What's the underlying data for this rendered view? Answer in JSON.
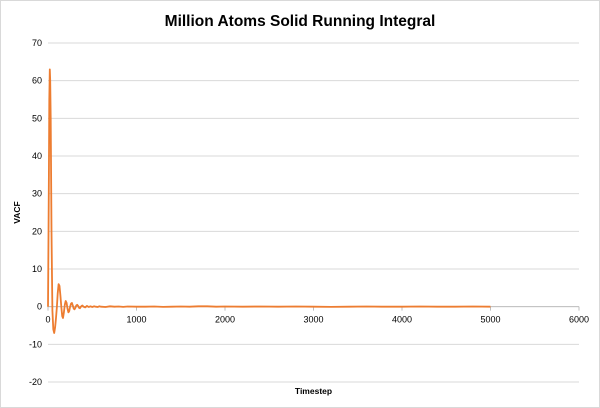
{
  "chart_data": {
    "type": "line",
    "title": "Million Atoms Solid Running Integral",
    "xlabel": "Timestep",
    "ylabel": "VACF",
    "xlim": [
      0,
      6000
    ],
    "ylim": [
      -20,
      70
    ],
    "xticks": [
      0,
      1000,
      2000,
      3000,
      4000,
      5000,
      6000
    ],
    "yticks": [
      70,
      60,
      50,
      40,
      30,
      20,
      10,
      0,
      -10,
      -20
    ],
    "grid": "horizontal",
    "legend": "none",
    "series": [
      {
        "name": "Running Integral",
        "color": "#ed7d31",
        "x": [
          0,
          5,
          10,
          15,
          20,
          25,
          30,
          35,
          40,
          45,
          50,
          60,
          70,
          80,
          90,
          100,
          110,
          120,
          130,
          140,
          150,
          160,
          170,
          180,
          190,
          200,
          210,
          220,
          230,
          240,
          250,
          260,
          270,
          280,
          290,
          300,
          310,
          320,
          330,
          340,
          350,
          360,
          370,
          380,
          390,
          400,
          420,
          440,
          460,
          480,
          500,
          520,
          540,
          560,
          580,
          600,
          650,
          700,
          750,
          800,
          850,
          900,
          1000,
          1100,
          1200,
          1300,
          1400,
          1500,
          1600,
          1700,
          1800,
          1900,
          2000,
          2200,
          2400,
          2600,
          2800,
          3000,
          3200,
          3400,
          3600,
          3800,
          4000,
          4200,
          4400,
          4600,
          4800,
          5000
        ],
        "y": [
          0,
          15,
          35,
          55,
          63,
          60,
          50,
          35,
          20,
          8,
          -1,
          -6,
          -7,
          -5.5,
          -3,
          0,
          3.5,
          6,
          5.5,
          3,
          0,
          -2.5,
          -3,
          -1.5,
          0.5,
          1.5,
          1.0,
          -0.5,
          -1.5,
          -1.2,
          0,
          0.8,
          1.0,
          0.3,
          -0.5,
          -0.7,
          -0.3,
          0.3,
          0.5,
          0.2,
          -0.3,
          -0.4,
          -0.1,
          0.2,
          0.3,
          0.0,
          -0.2,
          0.2,
          -0.1,
          0.1,
          -0.1,
          0.1,
          0.0,
          -0.1,
          0.1,
          0.0,
          -0.1,
          0.1,
          0.0,
          0.05,
          -0.05,
          0.05,
          0.0,
          0.0,
          0.05,
          -0.05,
          0.0,
          0.05,
          0.0,
          0.1,
          0.1,
          0.0,
          0.05,
          0.0,
          0.05,
          0.0,
          0.05,
          0.0,
          -0.05,
          0.0,
          0.05,
          0.0,
          0.0,
          0.05,
          0.0,
          0.0,
          0.05,
          0.0
        ]
      }
    ]
  }
}
